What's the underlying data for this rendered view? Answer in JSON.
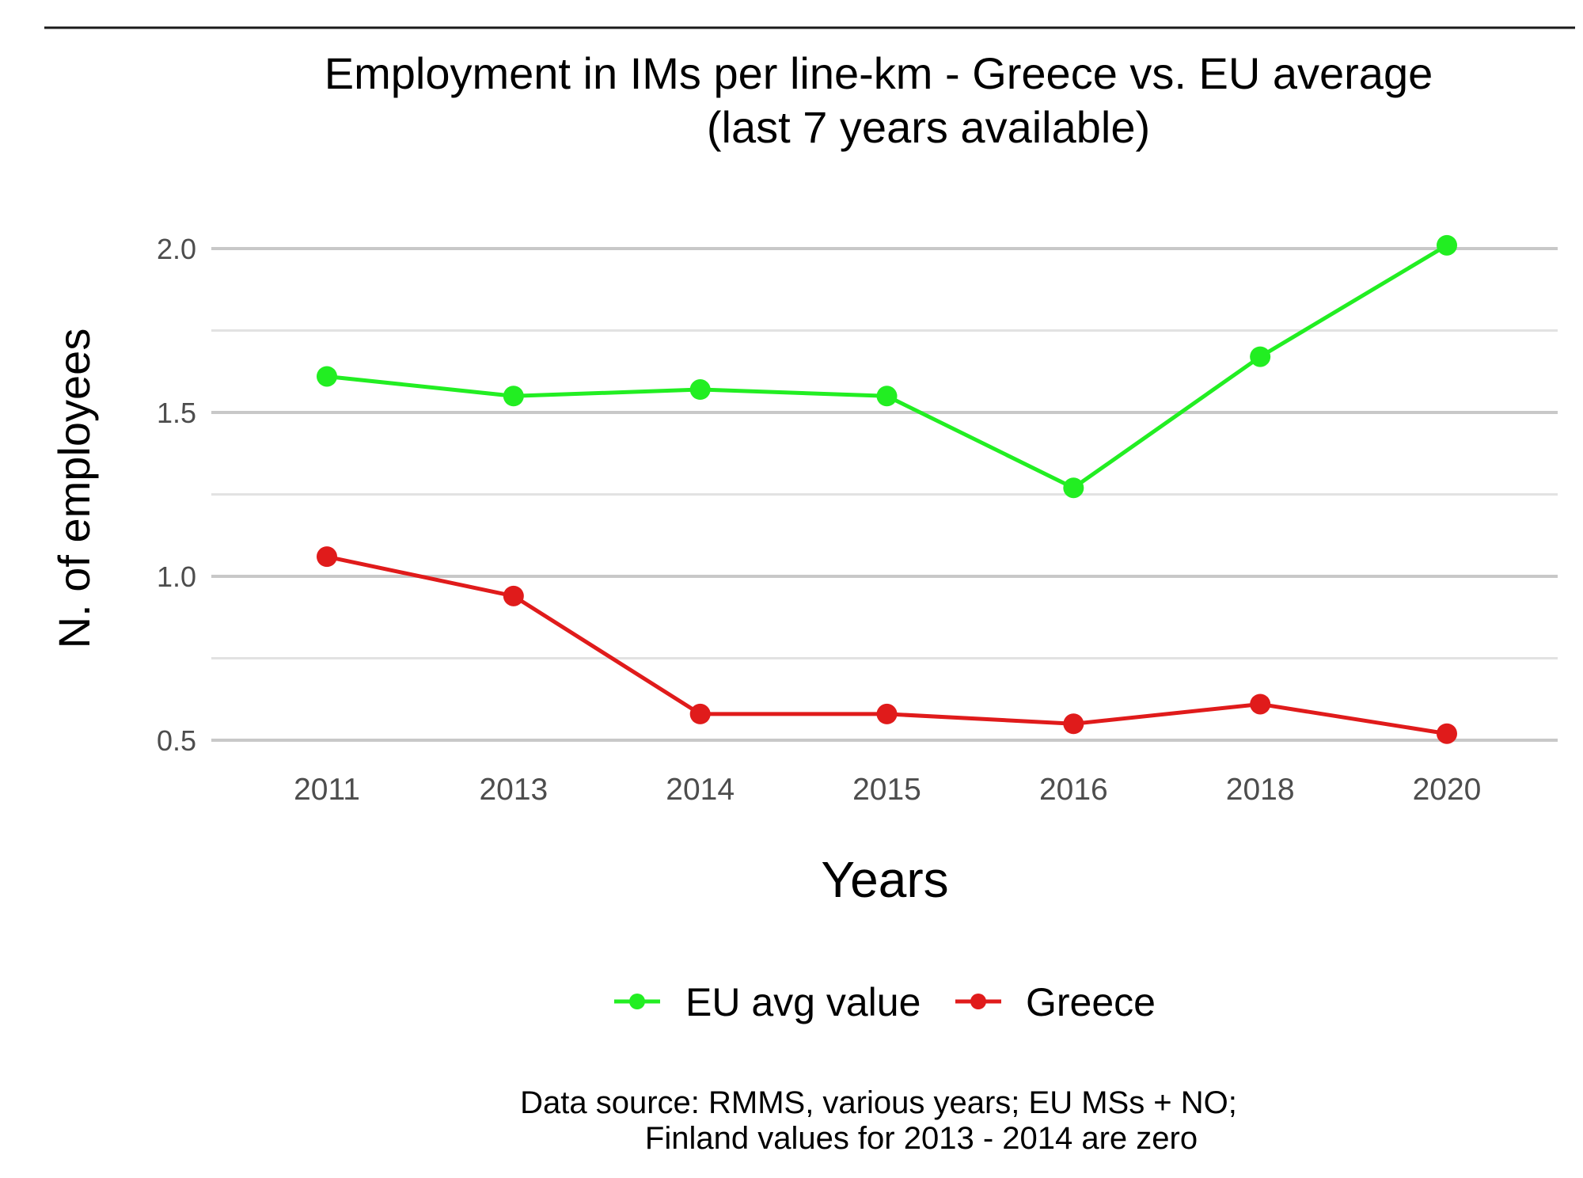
{
  "chart_data": {
    "type": "line",
    "title_lines": [
      "Employment in IMs per line-km - Greece vs. EU average",
      "(last 7 years available)"
    ],
    "xlabel": "Years",
    "ylabel": "N. of employees",
    "categories": [
      "2011",
      "2013",
      "2014",
      "2015",
      "2016",
      "2018",
      "2020"
    ],
    "ylim": [
      0.5,
      2.0
    ],
    "yticks": [
      0.5,
      1.0,
      1.5,
      2.0
    ],
    "ytick_labels": [
      "0.5",
      "1.0",
      "1.5",
      "2.0"
    ],
    "minor_gridlines": [
      0.75,
      1.25,
      1.75
    ],
    "grid": true,
    "legend_position": "bottom",
    "series": [
      {
        "name": "EU avg value",
        "color": "#22ee22",
        "values": [
          1.61,
          1.55,
          1.57,
          1.55,
          1.27,
          1.67,
          2.01
        ]
      },
      {
        "name": "Greece",
        "color": "#e01b1b",
        "values": [
          1.06,
          0.94,
          0.58,
          0.58,
          0.55,
          0.61,
          0.52
        ]
      }
    ],
    "caption_lines": [
      "Data source: RMMS, various years; EU MSs + NO;",
      "Finland values for 2013 - 2014 are zero"
    ]
  },
  "colors": {
    "major_grid": "#c8c8c8",
    "minor_grid": "#e2e2e2",
    "tick_text": "#4d4d4d",
    "text": "#000000",
    "top_rule": "#1a1a1a"
  }
}
